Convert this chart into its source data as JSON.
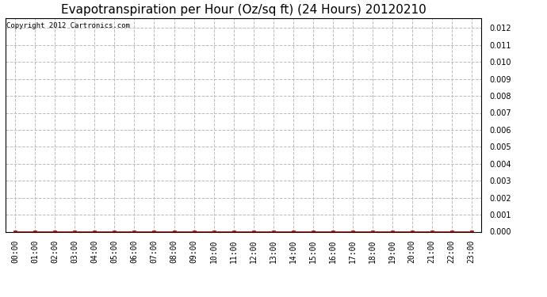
{
  "title": "Evapotranspiration per Hour (Oz/sq ft) (24 Hours) 20120210",
  "title_fontsize": 11,
  "copyright_text": "Copyright 2012 Cartronics.com",
  "x_labels": [
    "00:00",
    "01:00",
    "02:00",
    "03:00",
    "04:00",
    "05:00",
    "06:00",
    "07:00",
    "08:00",
    "09:00",
    "10:00",
    "11:00",
    "12:00",
    "13:00",
    "14:00",
    "15:00",
    "16:00",
    "17:00",
    "18:00",
    "19:00",
    "20:00",
    "21:00",
    "22:00",
    "23:00"
  ],
  "y_values": [
    0,
    0,
    0,
    0,
    0,
    0,
    0,
    0,
    0,
    0,
    0,
    0,
    0,
    0,
    0,
    0,
    0,
    0,
    0,
    0,
    0,
    0,
    0,
    0
  ],
  "ylim": [
    0,
    0.0126
  ],
  "yticks": [
    0.0,
    0.001,
    0.002,
    0.003,
    0.004,
    0.005,
    0.006,
    0.007,
    0.008,
    0.009,
    0.01,
    0.011,
    0.012
  ],
  "line_color": "#cc0000",
  "marker": "s",
  "marker_size": 3,
  "marker_color": "#cc0000",
  "grid_color": "#bbbbbb",
  "grid_style": "--",
  "bg_color": "#ffffff",
  "plot_bg_color": "#ffffff",
  "border_color": "#000000",
  "tick_label_fontsize": 7,
  "copyright_fontsize": 6.5
}
